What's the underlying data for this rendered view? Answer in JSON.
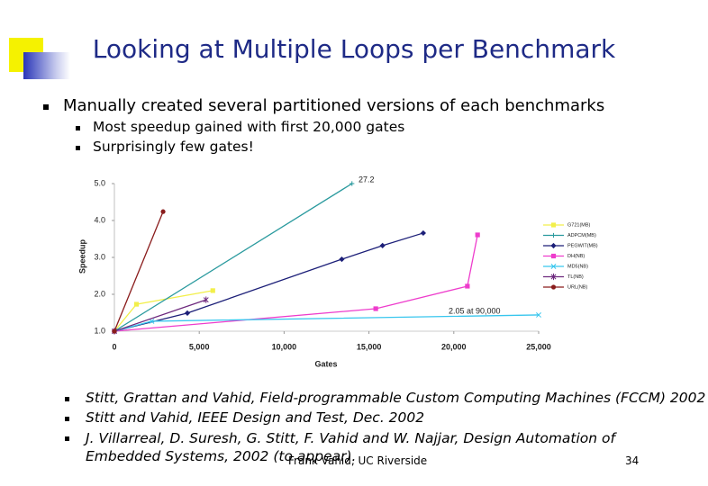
{
  "title": "Looking at Multiple Loops per Benchmark",
  "bullets": [
    {
      "text": "Manually created several partitioned versions of each benchmarks",
      "sub": [
        "Most speedup gained with first 20,000 gates",
        "Surprisingly few gates!"
      ]
    }
  ],
  "references": [
    "Stitt, Grattan and Vahid, Field-programmable Custom Computing Machines (FCCM) 2002",
    "Stitt and Vahid, IEEE Design and Test, Dec. 2002",
    "J. Villarreal, D. Suresh, G. Stitt, F. Vahid and W. Najjar, Design Automation of Embedded Systems, 2002 (to appear)."
  ],
  "footer": {
    "author": "Frank Vahid, UC Riverside",
    "page": "34"
  },
  "chart_data": {
    "type": "line",
    "x_label": "Gates",
    "y_label": "Speedup",
    "xlim": [
      0,
      25000
    ],
    "ylim": [
      1,
      5
    ],
    "xticks": [
      0,
      {
        "value": 5000,
        "label": "5,000"
      },
      {
        "value": 10000,
        "label": "10,000"
      },
      {
        "value": 15000,
        "label": "15,000"
      },
      {
        "value": 20000,
        "label": "20,000"
      },
      {
        "value": 25000,
        "label": "25,000"
      }
    ],
    "yticks": [
      {
        "value": 1,
        "label": "1.0"
      },
      {
        "value": 2,
        "label": "2.0"
      },
      {
        "value": 3,
        "label": "3.0"
      },
      {
        "value": 4,
        "label": "4.0"
      },
      {
        "value": 5,
        "label": "5.0"
      }
    ],
    "legend": "right",
    "annotations": [
      "27.2",
      "2.05 at 90,000"
    ],
    "series": [
      {
        "name": "G721(MB)",
        "color": "#f2ef4a",
        "marker": "square",
        "x": [
          0,
          1300,
          5800
        ],
        "values": [
          1,
          1.73,
          2.1
        ]
      },
      {
        "name": "ADPCM(MB)",
        "color": "#2a9a9e",
        "marker": "cross",
        "x": [
          0,
          14000
        ],
        "values": [
          1,
          5
        ]
      },
      {
        "name": "PEGWIT(MB)",
        "color": "#1c1f78",
        "marker": "diamond",
        "x": [
          0,
          4300,
          13400,
          15800,
          18200
        ],
        "values": [
          1,
          1.49,
          2.95,
          3.32,
          3.66
        ]
      },
      {
        "name": "DH(NB)",
        "color": "#ee3ccc",
        "marker": "square",
        "x": [
          0,
          15400,
          20800,
          21400
        ],
        "values": [
          1,
          1.61,
          2.22,
          3.61
        ]
      },
      {
        "name": "MD5(NB)",
        "color": "#38c6ee",
        "marker": "x",
        "x": [
          0,
          2200,
          25000
        ],
        "values": [
          1,
          1.27,
          1.44
        ]
      },
      {
        "name": "TL(NB)",
        "color": "#6e2a7e",
        "marker": "star",
        "x": [
          0,
          5400
        ],
        "values": [
          1,
          1.85
        ]
      },
      {
        "name": "URL(NB)",
        "color": "#8a1c1c",
        "marker": "circle",
        "x": [
          0,
          2870
        ],
        "values": [
          1,
          4.24
        ]
      }
    ]
  }
}
